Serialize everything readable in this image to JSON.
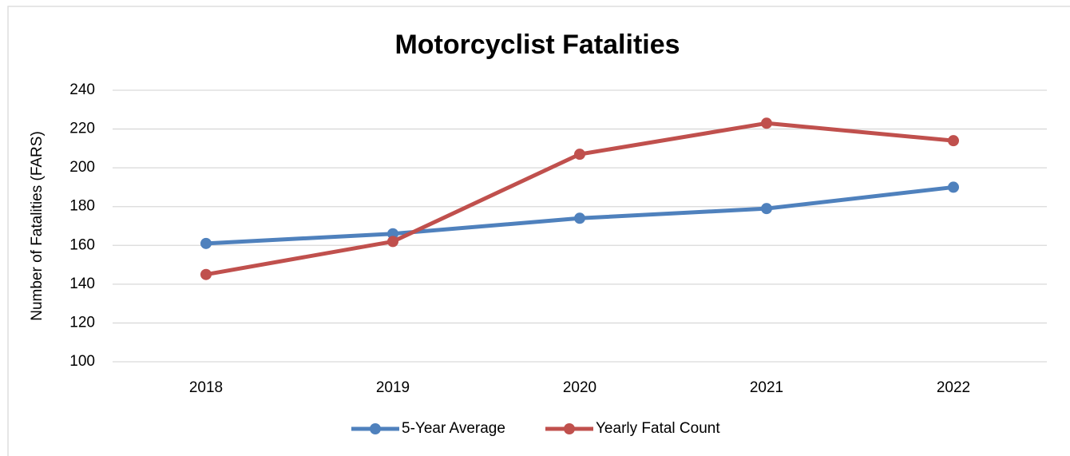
{
  "chart_data": {
    "type": "line",
    "title": "Motorcyclist Fatalities",
    "y_label": "Number of Fatalities (FARS)",
    "categories": [
      "2018",
      "2019",
      "2020",
      "2021",
      "2022"
    ],
    "series": [
      {
        "name": "5-Year Average",
        "color": "#4f81bd",
        "values": [
          161,
          166,
          174,
          179,
          190
        ]
      },
      {
        "name": "Yearly Fatal Count",
        "color": "#c0504d",
        "values": [
          145,
          162,
          207,
          223,
          214
        ]
      }
    ],
    "ylim": [
      100,
      240
    ],
    "yticks": [
      100,
      120,
      140,
      160,
      180,
      200,
      220,
      240
    ],
    "grid": true,
    "legend": "bottom"
  }
}
